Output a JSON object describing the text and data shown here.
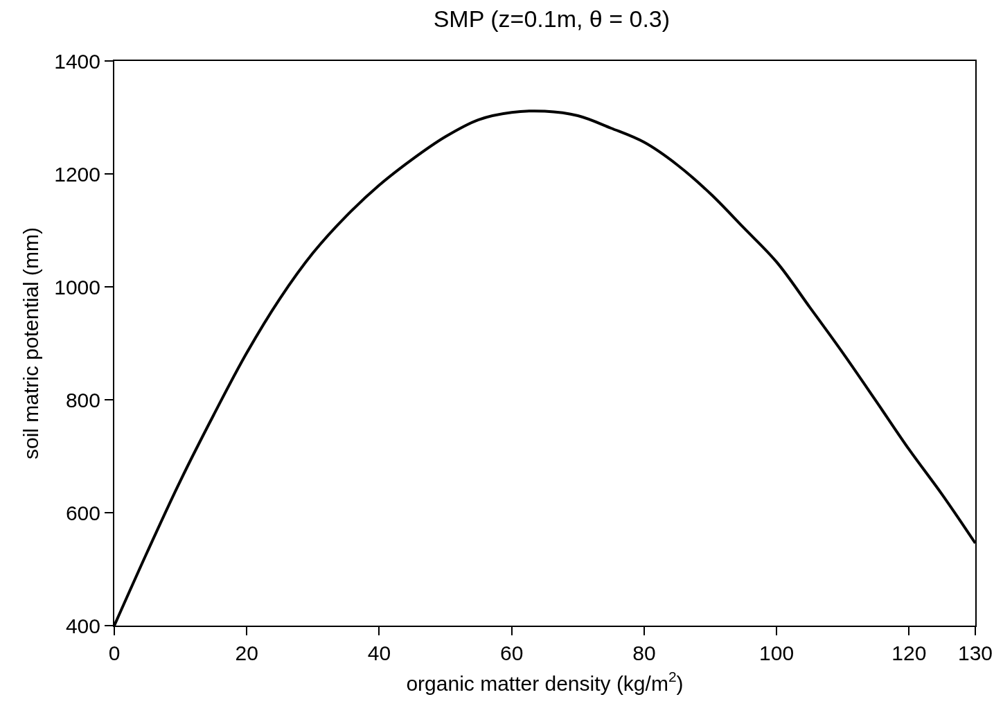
{
  "chart_data": {
    "type": "line",
    "title": "SMP (z=0.1m, θ = 0.3)",
    "xlabel": "organic matter density (kg/m$^{2}$)",
    "ylabel": "soil matric potential (mm)",
    "series": [
      {
        "color": "#000000",
        "x": [
          0,
          5,
          10,
          15,
          20,
          25,
          30,
          35,
          40,
          45,
          50,
          55,
          60,
          65,
          70,
          75,
          80,
          85,
          90,
          95,
          100,
          105,
          110,
          115,
          120,
          125,
          130
        ],
        "values": [
          400,
          531,
          657,
          773,
          883,
          979,
          1060,
          1125,
          1180,
          1226,
          1266,
          1296,
          1309,
          1311,
          1303,
          1281,
          1256,
          1216,
          1165,
          1105,
          1044,
          964,
          883,
          798,
          712,
          632,
          546
        ]
      }
    ],
    "xlim": [
      0,
      130
    ],
    "xticks": [
      0,
      20,
      40,
      60,
      80,
      100,
      120,
      130
    ],
    "ylim": [
      400,
      1400
    ],
    "yticks": [
      400,
      600,
      800,
      1000,
      1200,
      1400
    ],
    "grid": false,
    "marker": "none",
    "line_style": "solid"
  }
}
